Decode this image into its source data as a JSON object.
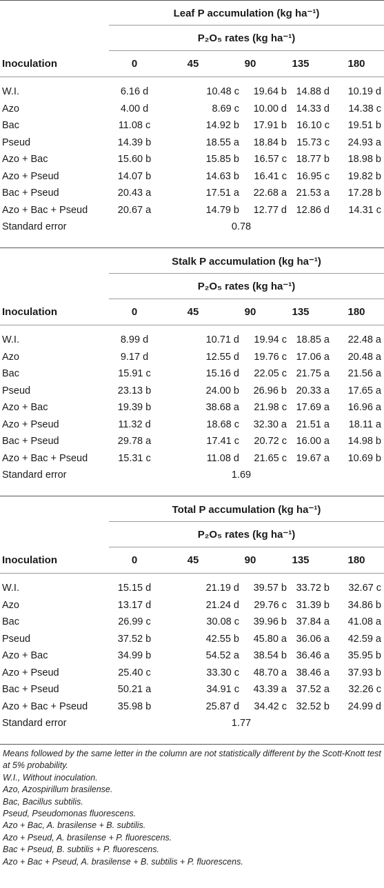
{
  "subheader": "P₂O₅ rates (kg ha⁻¹)",
  "column_headers": [
    "Inoculation",
    "0",
    "45",
    "90",
    "135",
    "180"
  ],
  "sections": [
    {
      "title": "Leaf P accumulation (kg ha⁻¹)",
      "rows": [
        [
          "W.I.",
          "6.16 d",
          "10.48 c",
          "19.64 b",
          "14.88 d",
          "10.19 d"
        ],
        [
          "Azo",
          "4.00 d",
          "8.69 c",
          "10.00 d",
          "14.33 d",
          "14.38 c"
        ],
        [
          "Bac",
          "11.08 c",
          "14.92 b",
          "17.91 b",
          "16.10 c",
          "19.51 b"
        ],
        [
          "Pseud",
          "14.39 b",
          "18.55 a",
          "18.84 b",
          "15.73 c",
          "24.93 a"
        ],
        [
          "Azo + Bac",
          "15.60 b",
          "15.85 b",
          "16.57 c",
          "18.77 b",
          "18.98 b"
        ],
        [
          "Azo + Pseud",
          "14.07 b",
          "14.63 b",
          "16.41 c",
          "16.95 c",
          "19.82 b"
        ],
        [
          "Bac + Pseud",
          "20.43 a",
          "17.51 a",
          "22.68 a",
          "21.53 a",
          "17.28 b"
        ],
        [
          "Azo + Bac + Pseud",
          "20.67 a",
          "14.79 b",
          "12.77 d",
          "12.86 d",
          "14.31 c"
        ]
      ],
      "se_label": "Standard error",
      "se_value": "0.78"
    },
    {
      "title": "Stalk P accumulation (kg ha⁻¹)",
      "rows": [
        [
          "W.I.",
          "8.99 d",
          "10.71 d",
          "19.94 c",
          "18.85 a",
          "22.48 a"
        ],
        [
          "Azo",
          "9.17 d",
          "12.55 d",
          "19.76 c",
          "17.06 a",
          "20.48 a"
        ],
        [
          "Bac",
          "15.91 c",
          "15.16 d",
          "22.05 c",
          "21.75 a",
          "21.56 a"
        ],
        [
          "Pseud",
          "23.13 b",
          "24.00 b",
          "26.96 b",
          "20.33 a",
          "17.65 a"
        ],
        [
          "Azo + Bac",
          "19.39 b",
          "38.68 a",
          "21.98 c",
          "17.69 a",
          "16.96 a"
        ],
        [
          "Azo + Pseud",
          "11.32 d",
          "18.68 c",
          "32.30 a",
          "21.51 a",
          "18.11 a"
        ],
        [
          "Bac + Pseud",
          "29.78 a",
          "17.41 c",
          "20.72 c",
          "16.00 a",
          "14.98 b"
        ],
        [
          "Azo + Bac + Pseud",
          "15.31 c",
          "11.08 d",
          "21.65 c",
          "19.67 a",
          "10.69 b"
        ]
      ],
      "se_label": "Standard error",
      "se_value": "1.69"
    },
    {
      "title": "Total P accumulation (kg ha⁻¹)",
      "rows": [
        [
          "W.I.",
          "15.15 d",
          "21.19 d",
          "39.57 b",
          "33.72 b",
          "32.67 c"
        ],
        [
          "Azo",
          "13.17 d",
          "21.24 d",
          "29.76 c",
          "31.39 b",
          "34.86 b"
        ],
        [
          "Bac",
          "26.99 c",
          "30.08 c",
          "39.96 b",
          "37.84 a",
          "41.08 a"
        ],
        [
          "Pseud",
          "37.52 b",
          "42.55 b",
          "45.80 a",
          "36.06 a",
          "42.59 a"
        ],
        [
          "Azo + Bac",
          "34.99 b",
          "54.52 a",
          "38.54 b",
          "36.46 a",
          "35.95 b"
        ],
        [
          "Azo + Pseud",
          "25.40 c",
          "33.30 c",
          "48.70 a",
          "38.46 a",
          "37.93 b"
        ],
        [
          "Bac + Pseud",
          "50.21 a",
          "34.91 c",
          "43.39 a",
          "37.52 a",
          "32.26 c"
        ],
        [
          "Azo + Bac + Pseud",
          "35.98 b",
          "25.87 d",
          "34.42 c",
          "32.52 b",
          "24.99 d"
        ]
      ],
      "se_label": "Standard error",
      "se_value": "1.77"
    }
  ],
  "footnotes": [
    "Means followed by the same letter in the column are not statistically different by the Scott-Knott test at 5% probability.",
    "W.I., Without inoculation.",
    "Azo, Azospirillum brasilense.",
    "Bac, Bacillus subtilis.",
    "Pseud, Pseudomonas fluorescens.",
    "Azo + Bac, A. brasilense + B. subtilis.",
    "Azo + Pseud, A. brasilense + P. fluorescens.",
    "Bac + Pseud, B. subtilis + P. fluorescens.",
    "Azo + Bac + Pseud, A. brasilense + B. subtilis + P. fluorescens."
  ]
}
